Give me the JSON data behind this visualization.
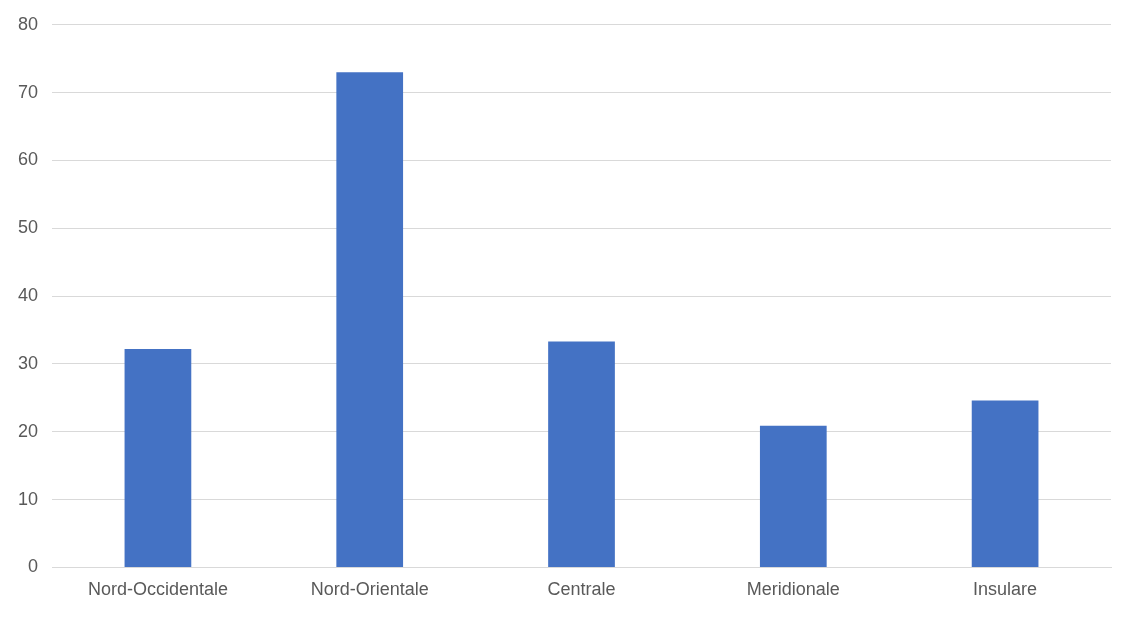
{
  "chart_data": {
    "type": "bar",
    "categories": [
      "Nord-Occidentale",
      "Nord-Orientale",
      "Centrale",
      "Meridionale",
      "Insulare"
    ],
    "values": [
      32.2,
      73.0,
      33.3,
      20.9,
      24.6
    ],
    "color": "#4472c4",
    "ylim": [
      0,
      80
    ],
    "yticks": [
      0,
      10,
      20,
      30,
      40,
      50,
      60,
      70,
      80
    ],
    "grid": "y",
    "legend": false
  }
}
